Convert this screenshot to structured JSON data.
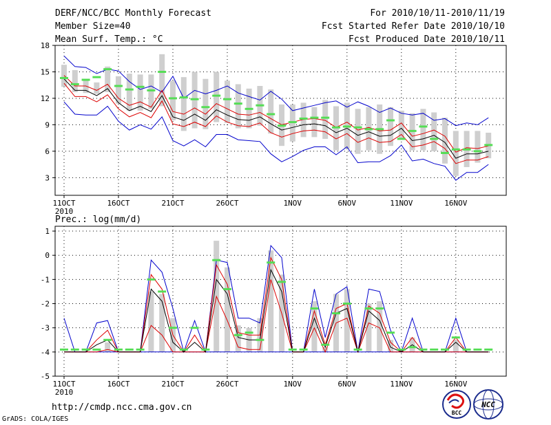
{
  "header": {
    "title": "DERF/NCC/BCC Monthly Forecast",
    "member_size": "Member Size=40",
    "variable": "Mean Surf. Temp.: °C",
    "period": "For 2010/10/11-2010/11/19",
    "started": "Fcst Started Refer Date 2010/10/10",
    "produced": "Fcst Produced Date 2010/10/11"
  },
  "x_year_label": "2010",
  "x_tick_labels": [
    "11OCT",
    "16OCT",
    "21OCT",
    "26OCT",
    "1NOV",
    "6NOV",
    "11NOV",
    "16NOV"
  ],
  "x_tick_days": [
    0,
    5,
    10,
    15,
    21,
    26,
    31,
    36
  ],
  "footer": {
    "url": "http://cmdp.ncc.cma.gov.cn",
    "credit": "GrADS: COLA/IGES",
    "logo_left": "BCC",
    "logo_right": "NCC"
  },
  "colors": {
    "max_min": "#0000cc",
    "median": "#000000",
    "quartile": "#dd0000",
    "box": "#cfcfcf",
    "mark": "#55dd55",
    "grid": "#000000"
  },
  "chart_data": [
    {
      "type": "line",
      "title": "Mean Surf. Temp.: °C",
      "days": 40,
      "ylim": [
        1,
        18
      ],
      "yticks": [
        3,
        6,
        9,
        12,
        15,
        18
      ],
      "series": [
        {
          "name": "max",
          "values": [
            16.8,
            15.6,
            15.5,
            14.8,
            15.3,
            15.1,
            13.9,
            13.0,
            13.4,
            12.7,
            14.5,
            12.0,
            12.9,
            12.5,
            12.9,
            13.4,
            12.6,
            12.2,
            11.8,
            12.8,
            11.9,
            10.6,
            10.9,
            11.2,
            11.5,
            11.7,
            11.0,
            11.6,
            11.1,
            10.4,
            10.9,
            10.3,
            10.1,
            10.3,
            9.5,
            9.7,
            8.9,
            9.2,
            9.0,
            9.8
          ]
        },
        {
          "name": "q3",
          "values": [
            14.6,
            13.4,
            13.4,
            12.9,
            13.6,
            12.0,
            11.2,
            11.6,
            11.0,
            12.9,
            10.5,
            10.2,
            10.9,
            10.2,
            11.4,
            10.8,
            10.2,
            10.1,
            10.4,
            9.7,
            9.0,
            9.3,
            9.6,
            9.7,
            9.5,
            8.7,
            9.3,
            8.4,
            8.7,
            8.3,
            8.4,
            9.2,
            7.7,
            8.0,
            8.4,
            7.7,
            5.9,
            6.4,
            6.3,
            6.6
          ]
        },
        {
          "name": "median",
          "values": [
            14.2,
            12.9,
            12.9,
            12.3,
            13.1,
            11.5,
            10.6,
            11.1,
            10.5,
            12.3,
            9.9,
            9.5,
            10.2,
            9.5,
            10.7,
            10.1,
            9.6,
            9.5,
            9.9,
            9.1,
            8.4,
            8.7,
            9.0,
            9.1,
            8.9,
            8.1,
            8.6,
            7.8,
            8.2,
            7.7,
            7.8,
            8.6,
            7.2,
            7.4,
            7.8,
            7.0,
            5.2,
            5.7,
            5.7,
            6.0
          ]
        },
        {
          "name": "q1",
          "values": [
            13.7,
            12.2,
            12.2,
            11.6,
            12.4,
            10.8,
            9.9,
            10.4,
            9.8,
            11.7,
            9.1,
            8.8,
            9.3,
            8.8,
            10.0,
            9.3,
            8.9,
            8.8,
            9.2,
            8.1,
            7.6,
            8.0,
            8.3,
            8.4,
            8.2,
            7.4,
            8.0,
            7.0,
            7.5,
            7.0,
            7.1,
            7.9,
            6.5,
            6.7,
            7.1,
            6.3,
            4.6,
            5.0,
            5.0,
            5.4
          ]
        },
        {
          "name": "min",
          "values": [
            11.6,
            10.2,
            10.1,
            10.1,
            11.1,
            9.4,
            8.4,
            9.0,
            8.5,
            9.9,
            7.2,
            6.6,
            7.3,
            6.5,
            7.9,
            7.9,
            7.3,
            7.2,
            7.1,
            5.7,
            4.8,
            5.4,
            6.1,
            6.5,
            6.5,
            5.6,
            6.5,
            4.7,
            4.8,
            4.8,
            5.5,
            6.7,
            4.9,
            5.1,
            4.6,
            4.3,
            2.7,
            3.6,
            3.6,
            4.5
          ]
        },
        {
          "name": "box_top",
          "values": [
            15.8,
            15.2,
            14.0,
            13.8,
            15.6,
            14.5,
            14.8,
            14.7,
            14.7,
            17.0,
            14.0,
            14.4,
            15.0,
            14.2,
            15.0,
            14.0,
            13.6,
            13.1,
            13.4,
            13.0,
            11.3,
            11.3,
            11.5,
            11.0,
            11.8,
            11.1,
            11.5,
            10.8,
            11.0,
            11.3,
            11.0,
            10.6,
            10.3,
            10.8,
            10.4,
            9.8,
            8.3,
            8.3,
            8.3,
            8.1
          ]
        },
        {
          "name": "box_bottom",
          "values": [
            13.3,
            12.7,
            12.6,
            12.5,
            12.7,
            11.4,
            10.6,
            10.6,
            10.8,
            11.1,
            9.5,
            8.3,
            8.6,
            8.5,
            9.3,
            9.2,
            8.6,
            8.6,
            8.9,
            8.0,
            6.6,
            7.1,
            7.6,
            7.6,
            7.4,
            6.1,
            6.3,
            5.7,
            6.1,
            5.7,
            6.6,
            7.3,
            6.1,
            6.1,
            6.0,
            4.6,
            3.2,
            4.2,
            4.7,
            5.2
          ]
        },
        {
          "name": "mark",
          "values": [
            14.3,
            13.6,
            14.1,
            14.4,
            15.3,
            13.4,
            13.0,
            13.3,
            12.9,
            15.0,
            12.0,
            12.1,
            11.9,
            11.0,
            12.3,
            11.9,
            11.4,
            10.8,
            11.2,
            10.2,
            8.9,
            9.3,
            9.7,
            9.8,
            9.8,
            8.7,
            8.8,
            8.7,
            8.5,
            8.5,
            9.5,
            7.4,
            8.3,
            8.8,
            7.4,
            5.8,
            6.2,
            6.2,
            6.0,
            6.7
          ]
        }
      ]
    },
    {
      "type": "line",
      "title": "Prec.: log(mm/d)",
      "days": 40,
      "ylim": [
        -5,
        1.2
      ],
      "yticks": [
        -5,
        -4,
        -3,
        -2,
        -1,
        0,
        1
      ],
      "series": [
        {
          "name": "max",
          "values": [
            -2.6,
            -4.0,
            -4.0,
            -2.8,
            -2.7,
            -4.0,
            -4.0,
            -4.0,
            -0.2,
            -0.7,
            -2.2,
            -4.0,
            -2.7,
            -4.0,
            -0.2,
            -0.3,
            -2.6,
            -2.6,
            -2.8,
            0.4,
            -0.1,
            -4.0,
            -4.0,
            -1.4,
            -3.4,
            -1.6,
            -1.3,
            -4.0,
            -1.4,
            -1.5,
            -3.1,
            -4.0,
            -2.6,
            -4.0,
            -4.0,
            -4.0,
            -2.6,
            -4.0,
            -4.0,
            -4.0
          ]
        },
        {
          "name": "q3",
          "values": [
            -4.0,
            -4.0,
            -4.0,
            -3.5,
            -3.1,
            -4.0,
            -4.0,
            -4.0,
            -0.8,
            -1.4,
            -3.3,
            -4.0,
            -3.3,
            -4.0,
            -0.4,
            -1.2,
            -3.2,
            -3.3,
            -3.3,
            -0.1,
            -1.0,
            -4.0,
            -4.0,
            -2.3,
            -3.7,
            -2.2,
            -2.0,
            -4.0,
            -2.1,
            -2.4,
            -3.6,
            -4.0,
            -3.4,
            -4.0,
            -4.0,
            -4.0,
            -3.4,
            -4.0,
            -4.0,
            -4.0
          ]
        },
        {
          "name": "median",
          "values": [
            -4.0,
            -4.0,
            -4.0,
            -3.7,
            -3.5,
            -4.0,
            -4.0,
            -4.0,
            -1.4,
            -1.9,
            -3.6,
            -4.0,
            -3.6,
            -4.0,
            -1.0,
            -1.6,
            -3.4,
            -3.5,
            -3.5,
            -0.6,
            -1.5,
            -4.0,
            -4.0,
            -2.6,
            -3.8,
            -2.4,
            -2.2,
            -4.0,
            -2.3,
            -2.7,
            -3.8,
            -4.0,
            -3.7,
            -4.0,
            -4.0,
            -4.0,
            -3.6,
            -4.0,
            -4.0,
            -4.0
          ]
        },
        {
          "name": "q1",
          "values": [
            -4.0,
            -4.0,
            -4.0,
            -4.0,
            -3.9,
            -4.0,
            -4.0,
            -4.0,
            -2.9,
            -3.3,
            -4.0,
            -4.0,
            -4.0,
            -4.0,
            -1.7,
            -2.7,
            -3.8,
            -3.9,
            -3.9,
            -1.0,
            -2.4,
            -4.0,
            -4.0,
            -3.0,
            -4.0,
            -2.8,
            -2.6,
            -4.0,
            -2.8,
            -3.0,
            -4.0,
            -4.0,
            -4.0,
            -4.0,
            -4.0,
            -4.0,
            -4.0,
            -4.0,
            -4.0,
            -4.0
          ]
        },
        {
          "name": "min",
          "values": [
            -4.0,
            -4.0,
            -4.0,
            -4.0,
            -4.0,
            -4.0,
            -4.0,
            -4.0,
            -4.0,
            -4.0,
            -4.0,
            -4.0,
            -4.0,
            -4.0,
            -4.0,
            -4.0,
            -4.0,
            -4.0,
            -4.0,
            -4.0,
            -4.0,
            -4.0,
            -4.0,
            -4.0,
            -4.0,
            -4.0,
            -4.0,
            -4.0,
            -4.0,
            -4.0,
            -4.0,
            -4.0,
            -4.0,
            -4.0,
            -4.0,
            -4.0,
            -4.0,
            -4.0,
            -4.0,
            -4.0
          ]
        },
        {
          "name": "box_top",
          "values": [
            -4.0,
            -4.0,
            -4.0,
            -4.0,
            -3.6,
            -4.0,
            -4.0,
            -4.0,
            -1.5,
            -1.6,
            -2.6,
            -4.0,
            -4.0,
            -4.0,
            0.6,
            -0.5,
            -2.9,
            -3.0,
            -2.6,
            0.2,
            -0.8,
            -4.0,
            -4.0,
            -1.9,
            -3.8,
            -1.6,
            -1.4,
            -4.0,
            -2.0,
            -1.9,
            -3.5,
            -4.0,
            -3.4,
            -4.0,
            -4.0,
            -4.0,
            -3.5,
            -4.0,
            -4.0,
            -4.0
          ]
        },
        {
          "name": "box_bottom",
          "values": [
            -4.0,
            -4.0,
            -4.0,
            -4.0,
            -4.0,
            -4.0,
            -4.0,
            -4.0,
            -4.0,
            -4.0,
            -4.0,
            -4.0,
            -4.0,
            -4.0,
            -4.0,
            -4.0,
            -4.0,
            -4.0,
            -4.0,
            -4.0,
            -4.0,
            -4.0,
            -4.0,
            -4.0,
            -4.0,
            -4.0,
            -4.0,
            -4.0,
            -4.0,
            -4.0,
            -4.0,
            -4.0,
            -4.0,
            -4.0,
            -4.0,
            -4.0,
            -4.0,
            -4.0,
            -4.0,
            -4.0
          ]
        },
        {
          "name": "mark",
          "values": [
            -3.9,
            -3.9,
            -3.9,
            -3.9,
            -3.5,
            -3.9,
            -3.9,
            -3.9,
            -1.0,
            -1.5,
            -3.0,
            -3.9,
            -3.0,
            -3.9,
            -0.2,
            -1.4,
            -3.3,
            -3.2,
            -3.5,
            -0.3,
            -1.1,
            -3.9,
            -3.9,
            -2.2,
            -3.7,
            -2.4,
            -2.0,
            -3.9,
            -2.2,
            -2.2,
            -3.2,
            -3.9,
            -3.8,
            -3.9,
            -3.9,
            -3.9,
            -3.4,
            -3.9,
            -3.9,
            -3.9
          ]
        }
      ]
    }
  ]
}
